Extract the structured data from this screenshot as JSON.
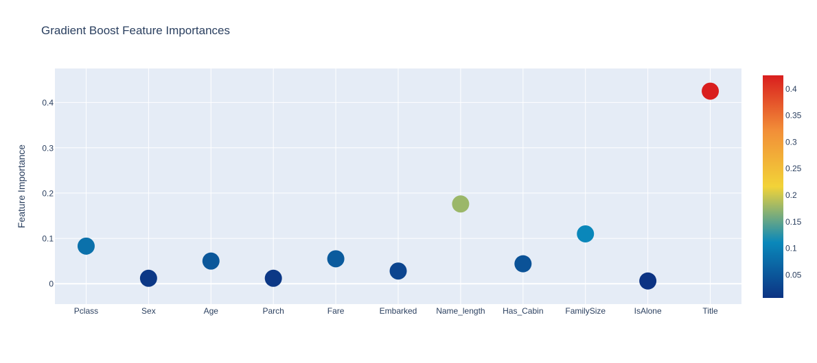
{
  "chart_data": {
    "type": "scatter",
    "title": "Gradient Boost Feature Importances",
    "xlabel": "",
    "ylabel": "Feature Importance",
    "categories": [
      "Pclass",
      "Sex",
      "Age",
      "Parch",
      "Fare",
      "Embarked",
      "Name_length",
      "Has_Cabin",
      "FamilySize",
      "IsAlone",
      "Title"
    ],
    "values": [
      0.083,
      0.012,
      0.05,
      0.012,
      0.055,
      0.028,
      0.176,
      0.044,
      0.11,
      0.006,
      0.425
    ],
    "ylim": [
      -0.045,
      0.475
    ],
    "yticks": [
      0,
      0.1,
      0.2,
      0.3,
      0.4
    ],
    "ytick_labels": [
      "0",
      "0.1",
      "0.2",
      "0.3",
      "0.4"
    ],
    "grid": true,
    "colorbar": {
      "range": [
        0.006,
        0.425
      ],
      "ticks": [
        0.05,
        0.1,
        0.15,
        0.2,
        0.25,
        0.3,
        0.35,
        0.4
      ],
      "tick_labels": [
        "0.05",
        "0.1",
        "0.15",
        "0.2",
        "0.25",
        "0.3",
        "0.35",
        "0.4"
      ],
      "colorscale": [
        [
          0.0,
          "#0c3383"
        ],
        [
          0.25,
          "#0a88ba"
        ],
        [
          0.5,
          "#f2d338"
        ],
        [
          0.75,
          "#f28f38"
        ],
        [
          1.0,
          "#d91e1e"
        ]
      ]
    },
    "colors": {
      "plot_bg": "#e5ecf6",
      "grid": "#ffffff",
      "text": "#2a3f5f"
    }
  }
}
